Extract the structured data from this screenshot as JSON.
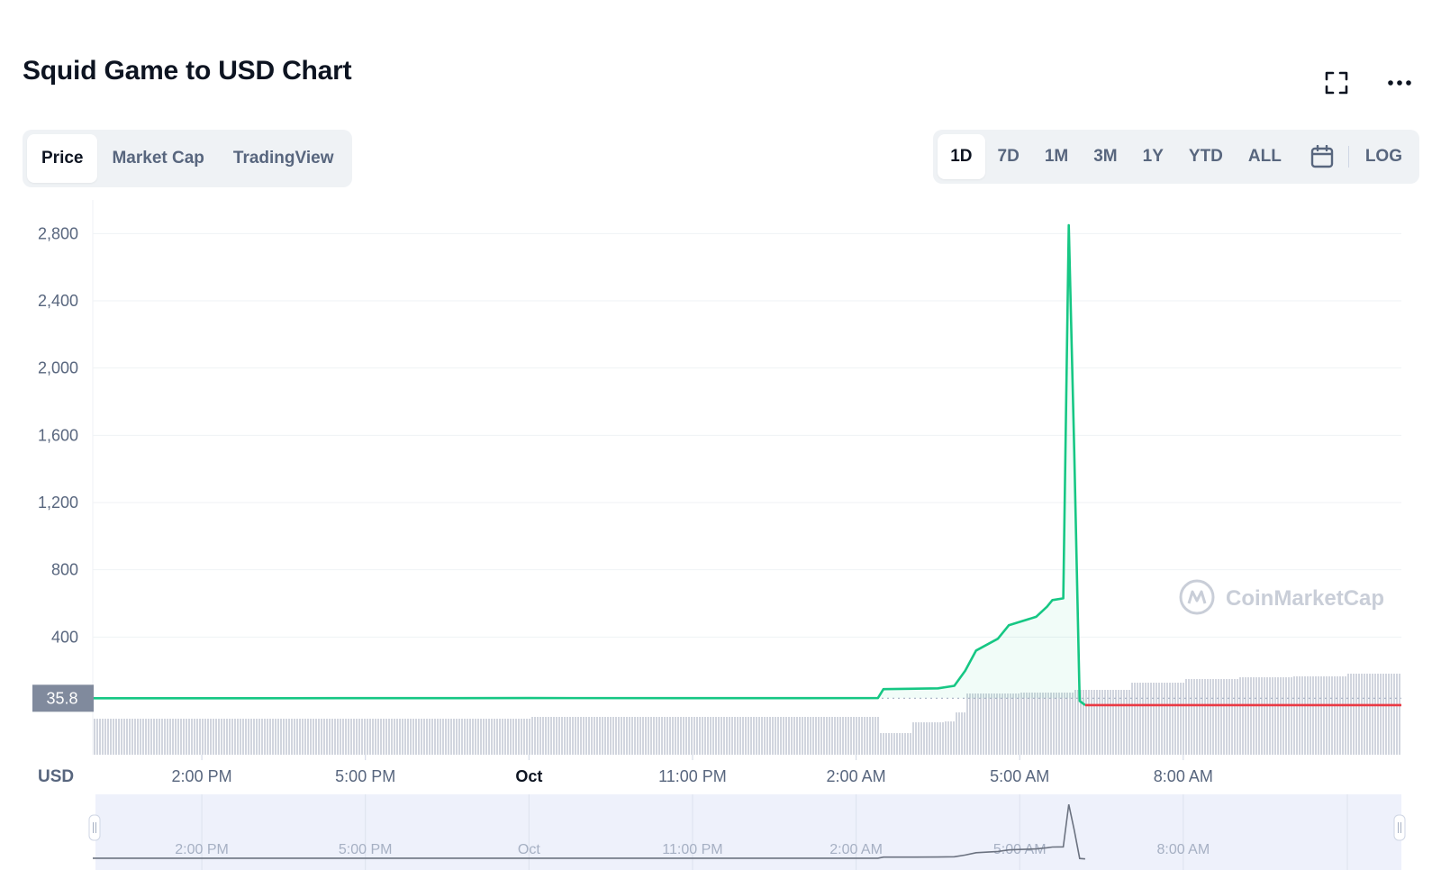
{
  "header": {
    "title": "Squid Game to USD Chart"
  },
  "top_actions": [
    {
      "name": "fullscreen-button",
      "icon": "fullscreen-icon"
    },
    {
      "name": "more-options-button",
      "icon": "more-dots-icon"
    }
  ],
  "chart_type_tabs": [
    {
      "label": "Price",
      "active": true
    },
    {
      "label": "Market Cap",
      "active": false
    },
    {
      "label": "TradingView",
      "active": false
    }
  ],
  "range_tabs": [
    {
      "label": "1D",
      "active": true
    },
    {
      "label": "7D",
      "active": false
    },
    {
      "label": "1M",
      "active": false
    },
    {
      "label": "3M",
      "active": false
    },
    {
      "label": "1Y",
      "active": false
    },
    {
      "label": "YTD",
      "active": false
    },
    {
      "label": "ALL",
      "active": false
    }
  ],
  "calendar_icon": "calendar-icon",
  "log_label": "LOG",
  "currency_label": "USD",
  "watermark": "CoinMarketCap",
  "colors": {
    "up": "#16c784",
    "down": "#ea3943",
    "accent": "#3861fb",
    "text": "#0d1421",
    "muted": "#58667e"
  },
  "chart_data": {
    "type": "line",
    "y_ticks": [
      "2,800",
      "2,400",
      "2,000",
      "1,600",
      "1,200",
      "800",
      "400"
    ],
    "y_tick_values": [
      2800,
      2400,
      2000,
      1600,
      1200,
      800,
      400
    ],
    "ylim": [
      -300,
      3000
    ],
    "x_ticks": [
      "2:00 PM",
      "5:00 PM",
      "Oct",
      "11:00 PM",
      "2:00 AM",
      "5:00 AM",
      "8:00 AM"
    ],
    "x_tick_hours": [
      2,
      5,
      8,
      11,
      14,
      17,
      20
    ],
    "xlim_hours": [
      0,
      24
    ],
    "current_price_label": "35.8",
    "current_price": 35.8,
    "series": [
      {
        "values_hours": [
          0,
          3,
          8,
          12,
          14.4,
          14.5,
          15.5,
          15.8,
          16.0,
          16.2,
          16.6,
          16.8,
          17.0,
          17.3,
          17.5,
          17.6,
          17.8,
          17.9,
          18.0,
          18.1,
          18.2
        ],
        "values": [
          35.8,
          36,
          37,
          36.5,
          37,
          90,
          95,
          110,
          200,
          320,
          390,
          470,
          490,
          520,
          580,
          620,
          630,
          2850,
          1500,
          20,
          -5
        ],
        "color": "#16c784"
      },
      {
        "values_hours": [
          18.2,
          24
        ],
        "values": [
          -5,
          -5
        ],
        "color": "#ea3943"
      }
    ],
    "volume": {
      "values_hours": [
        0,
        8,
        14.4,
        15.0,
        15.6,
        15.8,
        16.0,
        17.0,
        18.0,
        19.0,
        20.0,
        21.0,
        22.0,
        23.0,
        24
      ],
      "values": [
        0.4,
        0.42,
        0.24,
        0.36,
        0.37,
        0.47,
        0.68,
        0.69,
        0.72,
        0.8,
        0.84,
        0.86,
        0.87,
        0.9,
        0.9
      ]
    },
    "navigator": {
      "x_ticks": [
        "2:00 PM",
        "5:00 PM",
        "Oct",
        "11:00 PM",
        "2:00 AM",
        "5:00 AM",
        "8:00 AM"
      ]
    }
  }
}
